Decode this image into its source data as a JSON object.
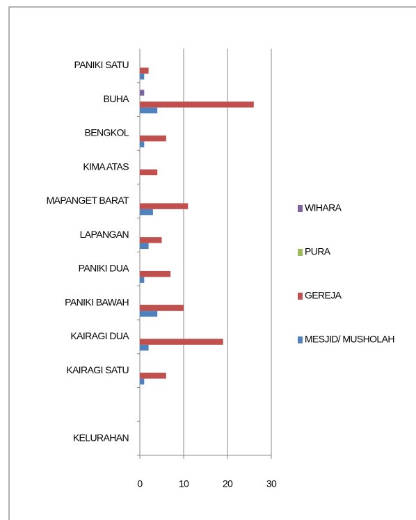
{
  "chart_data": {
    "type": "bar",
    "orientation": "horizontal",
    "categories": [
      "KELURAHAN",
      null,
      "KAIRAGI SATU",
      "KAIRAGI DUA",
      "PANIKI BAWAH",
      "PANIKI DUA",
      "LAPANGAN",
      "MAPANGET BARAT",
      "KIMA ATAS",
      "BENGKOL",
      "BUHA",
      "PANIKI SATU"
    ],
    "series": [
      {
        "name": "MESJID/ MUSHOLAH",
        "color": "#4f81bd",
        "values": [
          null,
          null,
          1,
          2,
          4,
          1,
          2,
          3,
          0,
          1,
          4,
          1
        ]
      },
      {
        "name": "GEREJA",
        "color": "#c0504d",
        "values": [
          null,
          null,
          6,
          19,
          10,
          7,
          5,
          11,
          4,
          6,
          26,
          2
        ]
      },
      {
        "name": "PURA",
        "color": "#9bbb59",
        "values": [
          null,
          null,
          0,
          0,
          0,
          0,
          0,
          0,
          0,
          0,
          0,
          0
        ]
      },
      {
        "name": "WIHARA",
        "color": "#8064a2",
        "values": [
          null,
          null,
          0,
          0,
          0,
          0,
          0,
          0,
          0,
          0,
          1,
          0
        ]
      }
    ],
    "xlim": [
      0,
      30
    ],
    "xticks": [
      0,
      10,
      20,
      30
    ],
    "grid": true,
    "legend": "right"
  }
}
